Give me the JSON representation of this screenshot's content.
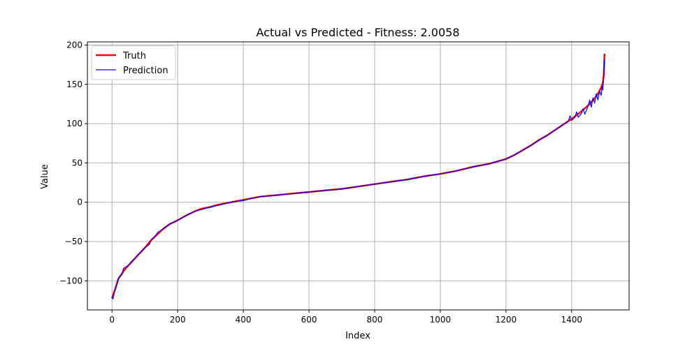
{
  "chart_data": {
    "type": "line",
    "title": "Actual vs Predicted - Fitness: 2.0058",
    "xlabel": "Index",
    "ylabel": "Value",
    "xlim": [
      -75,
      1575
    ],
    "ylim": [
      -137,
      204
    ],
    "x_ticks": [
      0,
      200,
      400,
      600,
      800,
      1000,
      1200,
      1400
    ],
    "y_ticks": [
      -100,
      -50,
      0,
      50,
      100,
      150,
      200
    ],
    "grid": true,
    "legend_position": "top-left",
    "series": [
      {
        "name": "Truth",
        "color": "#ff0000",
        "points": [
          [
            0,
            -122
          ],
          [
            10,
            -110
          ],
          [
            20,
            -97
          ],
          [
            40,
            -85
          ],
          [
            60,
            -76
          ],
          [
            80,
            -67
          ],
          [
            100,
            -58
          ],
          [
            120,
            -48
          ],
          [
            150,
            -36
          ],
          [
            175,
            -28
          ],
          [
            200,
            -23
          ],
          [
            225,
            -17
          ],
          [
            250,
            -12
          ],
          [
            275,
            -8
          ],
          [
            300,
            -6
          ],
          [
            325,
            -3
          ],
          [
            350,
            -1
          ],
          [
            375,
            1
          ],
          [
            400,
            3
          ],
          [
            425,
            5
          ],
          [
            450,
            7
          ],
          [
            500,
            9
          ],
          [
            550,
            11
          ],
          [
            600,
            13
          ],
          [
            650,
            15
          ],
          [
            700,
            17
          ],
          [
            750,
            20
          ],
          [
            800,
            23
          ],
          [
            850,
            26
          ],
          [
            900,
            29
          ],
          [
            950,
            33
          ],
          [
            1000,
            36
          ],
          [
            1050,
            40
          ],
          [
            1100,
            45
          ],
          [
            1150,
            49
          ],
          [
            1200,
            55
          ],
          [
            1225,
            60
          ],
          [
            1250,
            66
          ],
          [
            1275,
            72
          ],
          [
            1300,
            79
          ],
          [
            1325,
            85
          ],
          [
            1350,
            92
          ],
          [
            1375,
            99
          ],
          [
            1400,
            106
          ],
          [
            1425,
            114
          ],
          [
            1450,
            123
          ],
          [
            1470,
            132
          ],
          [
            1480,
            138
          ],
          [
            1490,
            146
          ],
          [
            1495,
            152
          ],
          [
            1498,
            162
          ],
          [
            1499,
            175
          ],
          [
            1500,
            189
          ]
        ]
      },
      {
        "name": "Prediction",
        "color": "#0000ff",
        "points": [
          [
            0,
            -121
          ],
          [
            3,
            -123
          ],
          [
            8,
            -114
          ],
          [
            12,
            -108
          ],
          [
            18,
            -98
          ],
          [
            25,
            -94
          ],
          [
            30,
            -92
          ],
          [
            35,
            -84
          ],
          [
            40,
            -83
          ],
          [
            50,
            -80
          ],
          [
            60,
            -75
          ],
          [
            70,
            -71
          ],
          [
            80,
            -66
          ],
          [
            90,
            -63
          ],
          [
            100,
            -58
          ],
          [
            110,
            -55
          ],
          [
            115,
            -53
          ],
          [
            120,
            -47
          ],
          [
            130,
            -44
          ],
          [
            140,
            -38
          ],
          [
            150,
            -36
          ],
          [
            160,
            -32
          ],
          [
            175,
            -28
          ],
          [
            200,
            -23
          ],
          [
            225,
            -17
          ],
          [
            250,
            -12
          ],
          [
            275,
            -9
          ],
          [
            300,
            -6
          ],
          [
            325,
            -4
          ],
          [
            350,
            -1
          ],
          [
            375,
            1
          ],
          [
            400,
            2
          ],
          [
            425,
            5
          ],
          [
            450,
            7
          ],
          [
            500,
            9
          ],
          [
            550,
            11
          ],
          [
            600,
            13
          ],
          [
            650,
            15
          ],
          [
            700,
            17
          ],
          [
            750,
            20
          ],
          [
            800,
            23
          ],
          [
            850,
            26
          ],
          [
            900,
            29
          ],
          [
            950,
            33
          ],
          [
            1000,
            36
          ],
          [
            1050,
            40
          ],
          [
            1100,
            45
          ],
          [
            1150,
            49
          ],
          [
            1200,
            55
          ],
          [
            1225,
            60
          ],
          [
            1250,
            66
          ],
          [
            1275,
            72
          ],
          [
            1300,
            79
          ],
          [
            1325,
            85
          ],
          [
            1350,
            92
          ],
          [
            1375,
            99
          ],
          [
            1390,
            103
          ],
          [
            1395,
            110
          ],
          [
            1400,
            104
          ],
          [
            1410,
            108
          ],
          [
            1415,
            115
          ],
          [
            1420,
            108
          ],
          [
            1430,
            113
          ],
          [
            1435,
            119
          ],
          [
            1440,
            112
          ],
          [
            1450,
            122
          ],
          [
            1455,
            130
          ],
          [
            1460,
            121
          ],
          [
            1465,
            133
          ],
          [
            1470,
            126
          ],
          [
            1475,
            138
          ],
          [
            1480,
            130
          ],
          [
            1485,
            141
          ],
          [
            1490,
            136
          ],
          [
            1493,
            148
          ],
          [
            1495,
            143
          ],
          [
            1497,
            155
          ],
          [
            1499,
            172
          ],
          [
            1500,
            182
          ]
        ]
      }
    ]
  }
}
